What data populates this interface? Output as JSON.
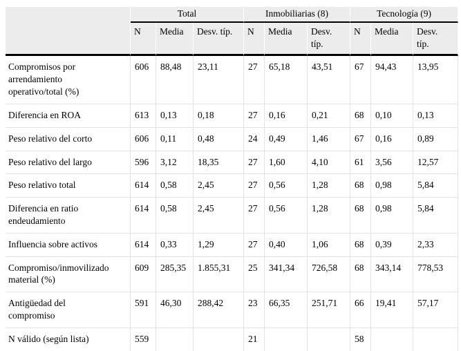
{
  "colors": {
    "header_background": "#ececec",
    "grid_line": "#e2e2e2",
    "rule_line": "#000000",
    "text": "#000000"
  },
  "table": {
    "groups": [
      {
        "label": "Total"
      },
      {
        "label": "Inmobiliarias (8)"
      },
      {
        "label": "Tecnología (9)"
      }
    ],
    "subheaders": [
      "N",
      "Media",
      "Desv. típ.",
      "N",
      "Media",
      "Desv. típ.",
      "N",
      "Media",
      "Desv. típ."
    ],
    "rows": [
      {
        "label": "Compromisos por arrendamiento operativo/total (%)",
        "values": [
          "606",
          "88,48",
          "23,11",
          "27",
          "65,18",
          "43,51",
          "67",
          "94,43",
          "13,95"
        ]
      },
      {
        "label": "Diferencia en ROA",
        "values": [
          "613",
          "0,13",
          "0,18",
          "27",
          "0,16",
          "0,21",
          "68",
          "0,10",
          "0,13"
        ]
      },
      {
        "label": "Peso relativo del corto",
        "values": [
          "606",
          "0,11",
          "0,48",
          "24",
          "0,49",
          "1,46",
          "67",
          "0,16",
          "0,89"
        ]
      },
      {
        "label": "Peso relativo del largo",
        "values": [
          "596",
          "3,12",
          "18,35",
          "27",
          "1,60",
          "4,10",
          "61",
          "3,56",
          "12,57"
        ]
      },
      {
        "label": "Peso relativo total",
        "values": [
          "614",
          "0,58",
          "2,45",
          "27",
          "0,56",
          "1,28",
          "68",
          "0,98",
          "5,84"
        ]
      },
      {
        "label": "Diferencia en ratio endeudamiento",
        "values": [
          "614",
          "0,58",
          "2,45",
          "27",
          "0,56",
          "1,28",
          "68",
          "0,98",
          "5,84"
        ]
      },
      {
        "label": "Influencia sobre activos",
        "values": [
          "614",
          "0,33",
          "1,29",
          "27",
          "0,40",
          "1,06",
          "68",
          "0,39",
          "2,33"
        ]
      },
      {
        "label": "Compromiso/inmovilizado material (%)",
        "values": [
          "609",
          "285,35",
          "1.855,31",
          "25",
          "341,34",
          "726,58",
          "68",
          "343,14",
          "778,53"
        ]
      },
      {
        "label": "Antigüedad del compromiso",
        "values": [
          "591",
          "46,30",
          "288,42",
          "23",
          "66,35",
          "251,71",
          "66",
          "19,41",
          "57,17"
        ]
      },
      {
        "label": "N válido (según lista)",
        "values": [
          "559",
          "",
          "",
          "21",
          "",
          "",
          "58",
          "",
          ""
        ]
      }
    ]
  }
}
